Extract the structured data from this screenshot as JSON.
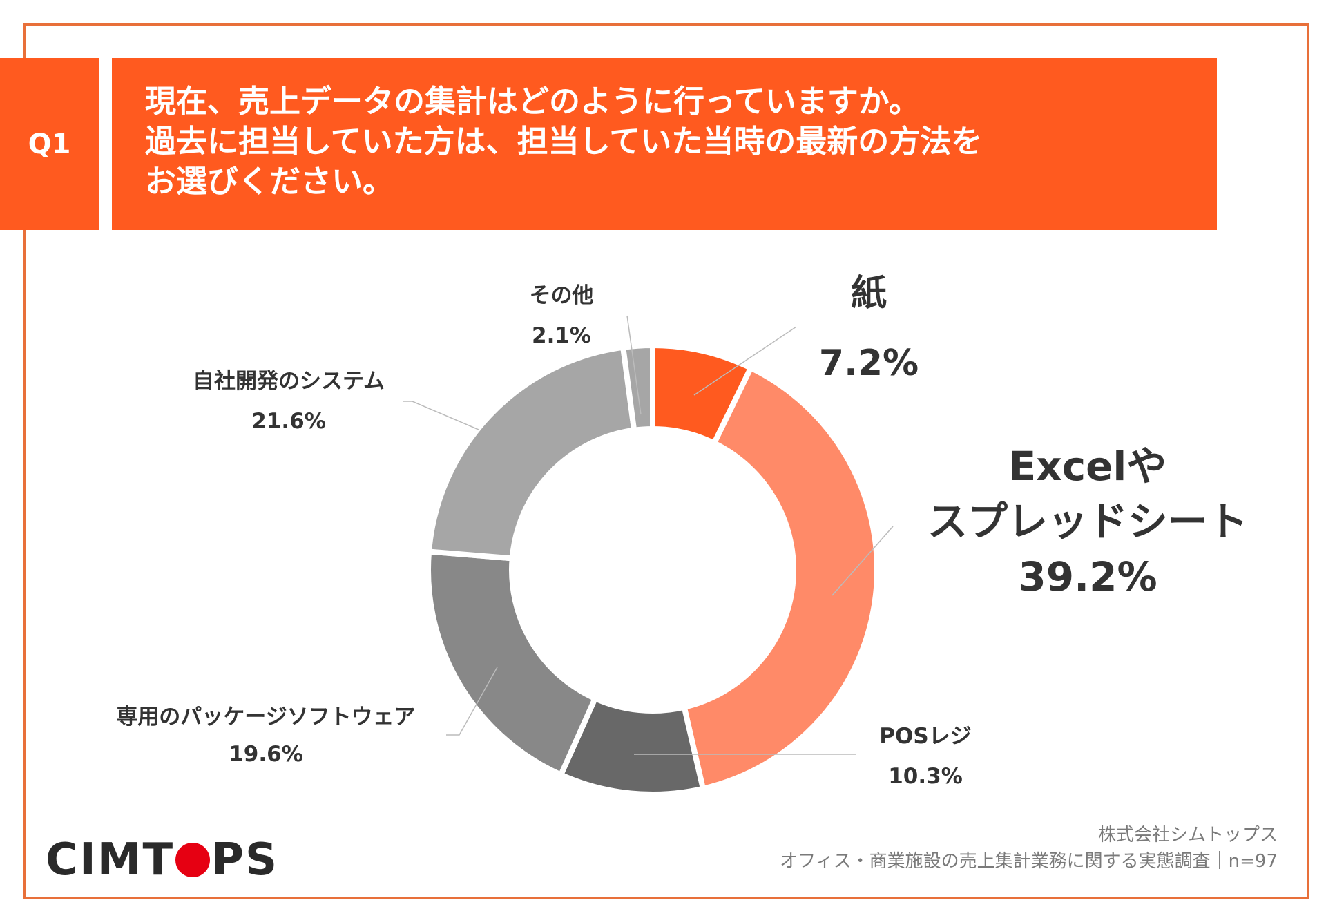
{
  "badge": "Q1",
  "question": {
    "lines": [
      "現在、売上データの集計はどのように行っていますか。",
      "過去に担当していた方は、担当していた当時の最新の方法を",
      "お選びください。"
    ]
  },
  "colors": {
    "accent": "#ff5a1f",
    "frame": "#e8703a",
    "paper": "#ff5a1f",
    "excel": "#ff8a68",
    "pos": "#686868",
    "package": "#888888",
    "inhouse": "#a6a6a6",
    "other": "#a6a6a6"
  },
  "chart_data": {
    "type": "pie",
    "subtype": "donut",
    "start": "top, clockwise",
    "slices": [
      {
        "key": "paper",
        "label": "紙",
        "value": 7.2,
        "display": "7.2%"
      },
      {
        "key": "excel",
        "label_lines": [
          "Excelや",
          "スプレッドシート"
        ],
        "value": 39.2,
        "display": "39.2%"
      },
      {
        "key": "pos",
        "label": "POSレジ",
        "value": 10.3,
        "display": "10.3%"
      },
      {
        "key": "package",
        "label": "専用のパッケージソフトウェア",
        "value": 19.6,
        "display": "19.6%"
      },
      {
        "key": "inhouse",
        "label": "自社開発のシステム",
        "value": 21.6,
        "display": "21.6%"
      },
      {
        "key": "other",
        "label": "その他",
        "value": 2.1,
        "display": "2.1%"
      }
    ]
  },
  "footer": {
    "company": "株式会社シムトップス",
    "survey": "オフィス・商業施設の売上集計業務に関する実態調査｜n=97"
  },
  "logo": {
    "before": "CIMT",
    "after": "PS"
  }
}
